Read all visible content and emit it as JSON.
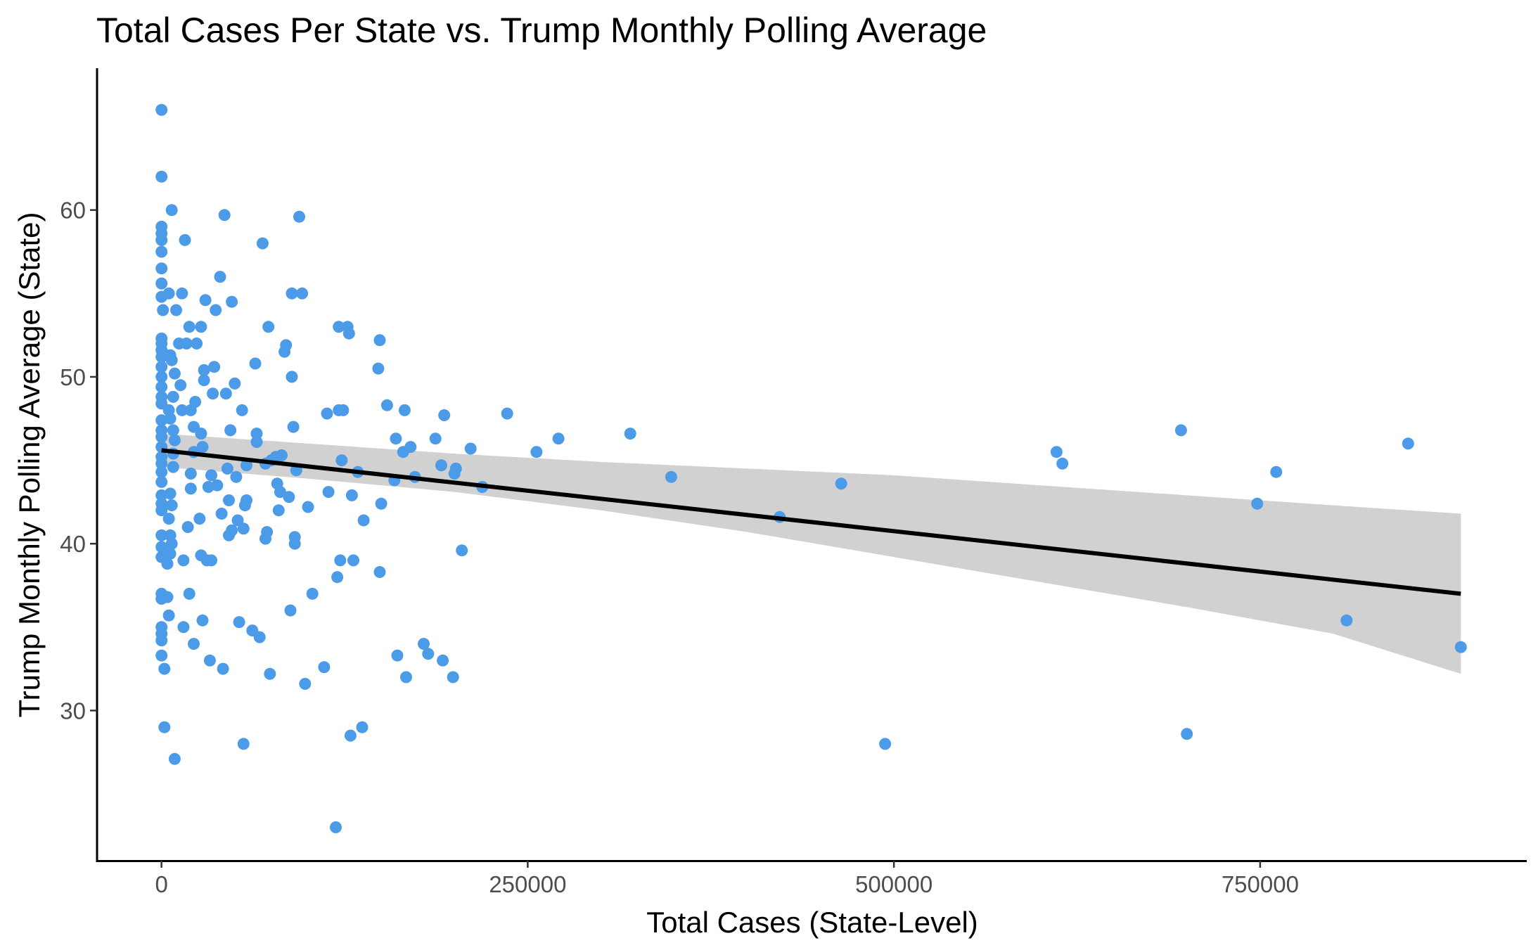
{
  "chart_data": {
    "type": "scatter",
    "title": "Total Cases Per State vs. Trump Monthly Polling Average",
    "xlabel": "Total Cases (State-Level)",
    "ylabel": "Trump Monthly Polling Average (State)",
    "xlim": [
      -44000,
      932000
    ],
    "ylim": [
      21,
      68.5
    ],
    "x_ticks": [
      {
        "value": 0,
        "label": "0"
      },
      {
        "value": 250000,
        "label": "250000"
      },
      {
        "value": 500000,
        "label": "500000"
      },
      {
        "value": 750000,
        "label": "750000"
      }
    ],
    "y_ticks": [
      {
        "value": 30,
        "label": "30"
      },
      {
        "value": 40,
        "label": "40"
      },
      {
        "value": 50,
        "label": "50"
      },
      {
        "value": 60,
        "label": "60"
      }
    ],
    "grid": false,
    "legend": "none",
    "point_color": "#4C9BE8",
    "line_color": "#000000",
    "band_color": "#cccccc",
    "points": [
      [
        0,
        66
      ],
      [
        0,
        62
      ],
      [
        0,
        59
      ],
      [
        0,
        58.6
      ],
      [
        0,
        58.2
      ],
      [
        0,
        57.5
      ],
      [
        0,
        56.5
      ],
      [
        0,
        55.6
      ],
      [
        0,
        54.8
      ],
      [
        1000,
        54
      ],
      [
        0,
        52.3
      ],
      [
        0,
        52
      ],
      [
        0,
        51.6
      ],
      [
        0,
        51.2
      ],
      [
        0,
        50.6
      ],
      [
        0,
        50
      ],
      [
        0,
        49.4
      ],
      [
        0,
        48.8
      ],
      [
        0,
        48.4
      ],
      [
        0,
        47.4
      ],
      [
        0,
        46.8
      ],
      [
        0,
        46.4
      ],
      [
        0,
        45.8
      ],
      [
        0,
        45.2
      ],
      [
        0,
        44.8
      ],
      [
        0,
        44.3
      ],
      [
        0,
        43.7
      ],
      [
        0,
        42.9
      ],
      [
        0,
        42.4
      ],
      [
        0,
        42
      ],
      [
        0,
        40.5
      ],
      [
        0,
        39.8
      ],
      [
        0,
        39.2
      ],
      [
        0,
        37
      ],
      [
        0,
        36.7
      ],
      [
        0,
        35
      ],
      [
        0,
        34.6
      ],
      [
        0,
        34.2
      ],
      [
        0,
        33.3
      ],
      [
        2000,
        32.5
      ],
      [
        2000,
        29
      ],
      [
        4000,
        36.8
      ],
      [
        5000,
        35.7
      ],
      [
        4000,
        38.8
      ],
      [
        6000,
        39.4
      ],
      [
        7000,
        40
      ],
      [
        6000,
        40.5
      ],
      [
        5000,
        41.5
      ],
      [
        7000,
        42.3
      ],
      [
        6000,
        43
      ],
      [
        8000,
        44.6
      ],
      [
        8000,
        45.4
      ],
      [
        9000,
        46.2
      ],
      [
        8000,
        46.8
      ],
      [
        6000,
        47.5
      ],
      [
        5000,
        48
      ],
      [
        8000,
        48.8
      ],
      [
        9000,
        50.2
      ],
      [
        7000,
        51
      ],
      [
        6000,
        51.3
      ],
      [
        5000,
        55
      ],
      [
        7000,
        60
      ],
      [
        9000,
        27.1
      ],
      [
        10000,
        54
      ],
      [
        12000,
        52
      ],
      [
        14000,
        55
      ],
      [
        13000,
        49.5
      ],
      [
        14000,
        48
      ],
      [
        15000,
        39
      ],
      [
        15000,
        35
      ],
      [
        16000,
        58.2
      ],
      [
        17000,
        52
      ],
      [
        18000,
        41
      ],
      [
        19000,
        37
      ],
      [
        19000,
        53
      ],
      [
        20000,
        48
      ],
      [
        20000,
        44.2
      ],
      [
        20000,
        43.3
      ],
      [
        22000,
        47
      ],
      [
        22000,
        45.5
      ],
      [
        23000,
        48.5
      ],
      [
        22000,
        34
      ],
      [
        24000,
        52
      ],
      [
        26000,
        41.5
      ],
      [
        27000,
        46.6
      ],
      [
        27000,
        53
      ],
      [
        27000,
        39.3
      ],
      [
        28000,
        45.8
      ],
      [
        28000,
        35.4
      ],
      [
        29000,
        50.4
      ],
      [
        29000,
        49.8
      ],
      [
        30000,
        54.6
      ],
      [
        31000,
        39
      ],
      [
        32000,
        43.4
      ],
      [
        33000,
        33
      ],
      [
        34000,
        39
      ],
      [
        34000,
        44.1
      ],
      [
        35000,
        49
      ],
      [
        36000,
        50.6
      ],
      [
        37000,
        54
      ],
      [
        38000,
        43.5
      ],
      [
        40000,
        56
      ],
      [
        41000,
        41.8
      ],
      [
        42000,
        32.5
      ],
      [
        43000,
        59.7
      ],
      [
        44000,
        49
      ],
      [
        45000,
        44.5
      ],
      [
        46000,
        42.6
      ],
      [
        46000,
        40.5
      ],
      [
        47000,
        46.8
      ],
      [
        48000,
        40.8
      ],
      [
        48000,
        54.5
      ],
      [
        50000,
        49.6
      ],
      [
        51000,
        44
      ],
      [
        52000,
        41.4
      ],
      [
        53000,
        35.3
      ],
      [
        55000,
        48
      ],
      [
        56000,
        40.9
      ],
      [
        56000,
        28
      ],
      [
        57000,
        42.3
      ],
      [
        58000,
        44.7
      ],
      [
        58000,
        42.6
      ],
      [
        62000,
        34.8
      ],
      [
        64000,
        50.8
      ],
      [
        65000,
        46.1
      ],
      [
        65000,
        46.6
      ],
      [
        67000,
        34.4
      ],
      [
        69000,
        58
      ],
      [
        71000,
        44.8
      ],
      [
        71000,
        40.3
      ],
      [
        72000,
        40.7
      ],
      [
        73000,
        53
      ],
      [
        74000,
        32.2
      ],
      [
        75000,
        45
      ],
      [
        78000,
        45.2
      ],
      [
        79000,
        43.6
      ],
      [
        80000,
        42
      ],
      [
        81000,
        43.1
      ],
      [
        82000,
        45.3
      ],
      [
        84000,
        51.5
      ],
      [
        85000,
        51.9
      ],
      [
        87000,
        42.8
      ],
      [
        88000,
        36
      ],
      [
        89000,
        55
      ],
      [
        89000,
        50
      ],
      [
        90000,
        47
      ],
      [
        91000,
        40.4
      ],
      [
        91000,
        40
      ],
      [
        92000,
        44.4
      ],
      [
        94000,
        59.6
      ],
      [
        96000,
        55
      ],
      [
        98000,
        31.6
      ],
      [
        100000,
        42.2
      ],
      [
        103000,
        37
      ],
      [
        111000,
        32.6
      ],
      [
        113000,
        47.8
      ],
      [
        114000,
        43.1
      ],
      [
        119000,
        23
      ],
      [
        120000,
        38
      ],
      [
        121000,
        48
      ],
      [
        121000,
        53
      ],
      [
        122000,
        39
      ],
      [
        123000,
        45
      ],
      [
        124000,
        48
      ],
      [
        127000,
        53
      ],
      [
        128000,
        52.6
      ],
      [
        129000,
        28.5
      ],
      [
        130000,
        42.9
      ],
      [
        131000,
        39
      ],
      [
        134000,
        44.3
      ],
      [
        137000,
        29
      ],
      [
        138000,
        41.4
      ],
      [
        148000,
        50.5
      ],
      [
        149000,
        52.2
      ],
      [
        149000,
        38.3
      ],
      [
        150000,
        42.4
      ],
      [
        154000,
        48.3
      ],
      [
        159000,
        43.8
      ],
      [
        160000,
        46.3
      ],
      [
        161000,
        33.3
      ],
      [
        165000,
        45.5
      ],
      [
        166000,
        48
      ],
      [
        167000,
        32
      ],
      [
        170000,
        45.8
      ],
      [
        173000,
        44
      ],
      [
        179000,
        34
      ],
      [
        182000,
        33.4
      ],
      [
        187000,
        46.3
      ],
      [
        191000,
        44.7
      ],
      [
        192000,
        33
      ],
      [
        193000,
        47.7
      ],
      [
        199000,
        32
      ],
      [
        200000,
        44.2
      ],
      [
        201000,
        44.5
      ],
      [
        205000,
        39.6
      ],
      [
        211000,
        45.7
      ],
      [
        219000,
        43.4
      ],
      [
        236000,
        47.8
      ],
      [
        256000,
        45.5
      ],
      [
        271000,
        46.3
      ],
      [
        320000,
        46.6
      ],
      [
        348000,
        44
      ],
      [
        422000,
        41.6
      ],
      [
        464000,
        43.6
      ],
      [
        494000,
        28
      ],
      [
        611000,
        45.5
      ],
      [
        615000,
        44.8
      ],
      [
        696000,
        46.8
      ],
      [
        700000,
        28.6
      ],
      [
        748000,
        42.4
      ],
      [
        761000,
        44.3
      ],
      [
        809000,
        35.4
      ],
      [
        851000,
        46
      ],
      [
        887000,
        33.8
      ]
    ],
    "fit_line": [
      [
        0,
        45.6
      ],
      [
        887000,
        37.0
      ]
    ],
    "confidence_band": {
      "x": [
        0,
        100000,
        200000,
        300000,
        400000,
        500000,
        600000,
        700000,
        800000,
        887000
      ],
      "lower": [
        44.6,
        43.9,
        43.1,
        42.0,
        40.7,
        39.2,
        37.7,
        36.2,
        34.6,
        32.2
      ],
      "upper": [
        46.6,
        46.0,
        45.4,
        44.9,
        44.5,
        44.1,
        43.5,
        42.9,
        42.3,
        41.8
      ]
    }
  }
}
